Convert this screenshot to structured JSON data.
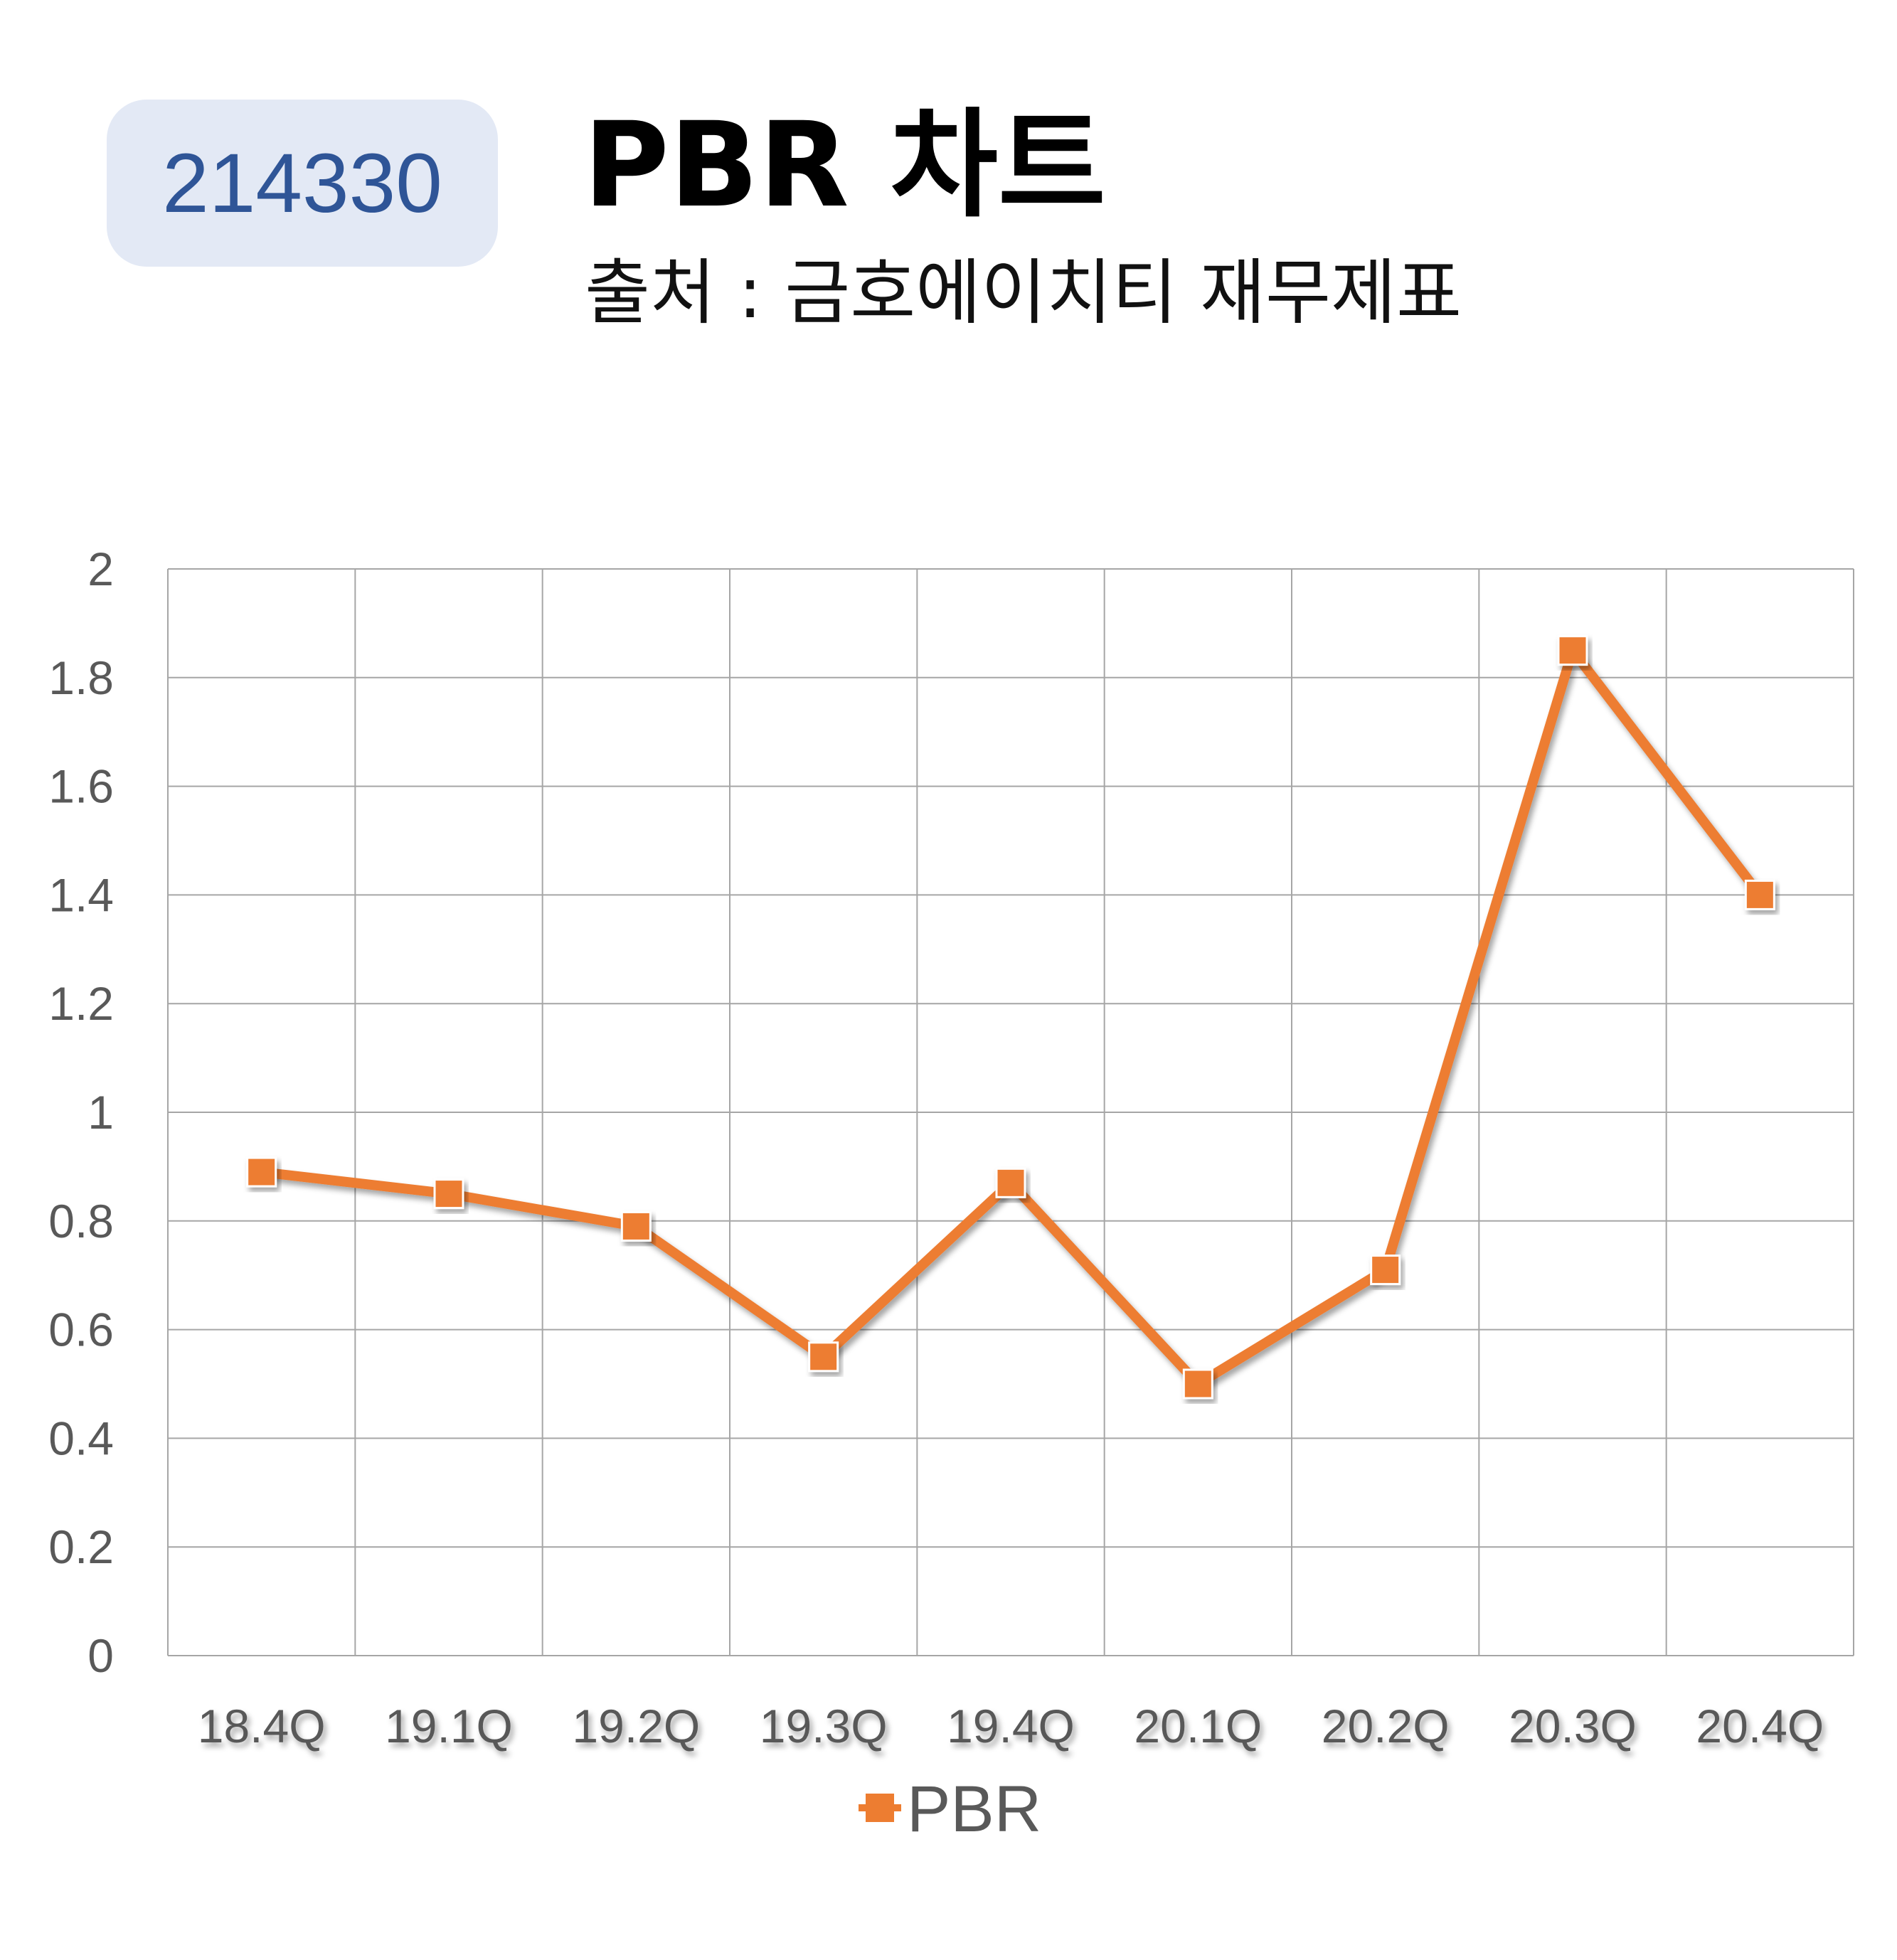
{
  "badge": {
    "code": "214330"
  },
  "header": {
    "title": "PBR 차트",
    "subtitle": "출처 : 금호에이치티 재무제표"
  },
  "colors": {
    "series": "#ed7d31",
    "grid": "#a6a6a6",
    "badge_bg": "#e3e9f5",
    "badge_text": "#2f5597"
  },
  "chart_data": {
    "type": "line",
    "categories": [
      "18.4Q",
      "19.1Q",
      "19.2Q",
      "19.3Q",
      "19.4Q",
      "20.1Q",
      "20.2Q",
      "20.3Q",
      "20.4Q"
    ],
    "series": [
      {
        "name": "PBR",
        "values": [
          0.89,
          0.85,
          0.79,
          0.55,
          0.87,
          0.5,
          0.71,
          1.85,
          1.4
        ],
        "marker": "square"
      }
    ],
    "y_ticks": [
      "0",
      "0.2",
      "0.4",
      "0.6",
      "0.8",
      "1",
      "1.2",
      "1.4",
      "1.6",
      "1.8",
      "2"
    ],
    "ylim": [
      0,
      2
    ],
    "grid": true,
    "legend": "bottom"
  }
}
